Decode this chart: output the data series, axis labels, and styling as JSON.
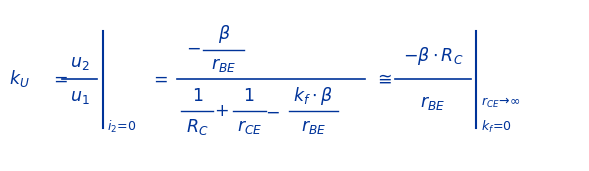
{
  "background_color": "#ffffff",
  "text_color": "#003399",
  "figsize": [
    5.89,
    1.71
  ],
  "dpi": 100,
  "fontsize": 12.5
}
